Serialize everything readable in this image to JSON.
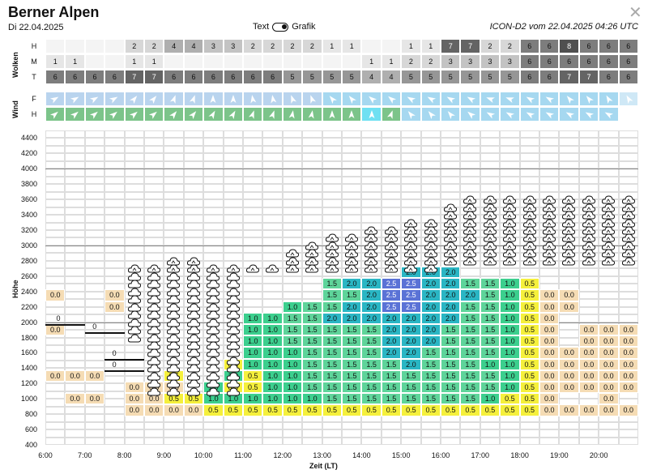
{
  "header": {
    "title": "Berner Alpen",
    "date": "Di 22.04.2025",
    "toggle_left": "Text",
    "toggle_right": "Grafik",
    "model_run": "ICON-D2 vom 22.04.2025 04:26 UTC",
    "close_icon": "close-icon"
  },
  "clouds": {
    "section_label": "Wolken",
    "rows": [
      {
        "label": "H",
        "values": [
          "",
          "",
          "",
          "",
          "2",
          "2",
          "4",
          "4",
          "3",
          "3",
          "2",
          "2",
          "2",
          "2",
          "1",
          "1",
          "",
          "",
          "1",
          "1",
          "7",
          "7",
          "2",
          "2",
          "6",
          "6",
          "8",
          "6",
          "6",
          "6"
        ]
      },
      {
        "label": "M",
        "values": [
          "1",
          "1",
          "",
          "",
          "1",
          "1",
          "",
          "",
          "",
          "",
          "",
          "",
          "",
          "",
          "",
          "",
          "1",
          "1",
          "2",
          "2",
          "3",
          "3",
          "3",
          "3",
          "6",
          "6",
          "6",
          "6",
          "6",
          "6"
        ]
      },
      {
        "label": "T",
        "values": [
          "6",
          "6",
          "6",
          "6",
          "7",
          "7",
          "6",
          "6",
          "6",
          "6",
          "6",
          "6",
          "5",
          "5",
          "5",
          "5",
          "4",
          "4",
          "5",
          "5",
          "5",
          "5",
          "5",
          "5",
          "6",
          "6",
          "7",
          "7",
          "6",
          "6"
        ]
      }
    ]
  },
  "wind": {
    "section_label": "Wind",
    "rows": [
      {
        "label": "F",
        "colors": [
          "#b9d4ee",
          "#b9d4ee",
          "#b9d4ee",
          "#b9d4ee",
          "#b9d4ee",
          "#b9d4ee",
          "#b9d4ee",
          "#b9d4ee",
          "#b9d4ee",
          "#b9d4ee",
          "#b9d4ee",
          "#b9d4ee",
          "#b9d4ee",
          "#b9d4ee",
          "#a6d8f0",
          "#a6d8f0",
          "#a6d8f0",
          "#a6d8f0",
          "#a6d8f0",
          "#a6d8f0",
          "#a6d8f0",
          "#a6d8f0",
          "#a6d8f0",
          "#a6d8f0",
          "#a6d8f0",
          "#a6d8f0",
          "#a6d8f0",
          "#a6d8f0",
          "#a6d8f0",
          "#cfe8f6"
        ],
        "dirs": [
          60,
          60,
          60,
          60,
          40,
          40,
          20,
          20,
          0,
          0,
          350,
          350,
          340,
          340,
          320,
          320,
          310,
          310,
          300,
          300,
          300,
          300,
          290,
          290,
          300,
          300,
          320,
          320,
          330,
          330
        ]
      },
      {
        "label": "H",
        "colors": [
          "#7cc48a",
          "#7cc48a",
          "#7cc48a",
          "#7cc48a",
          "#7cc48a",
          "#7cc48a",
          "#7cc48a",
          "#7cc48a",
          "#7cc48a",
          "#7cc48a",
          "#7cc48a",
          "#7cc48a",
          "#7cc48a",
          "#7cc48a",
          "#7cc48a",
          "#7cc48a",
          "#6fe0f2",
          "#7cc48a",
          "#a6d8f0",
          "#a6d8f0",
          "#a6d8f0",
          "#a6d8f0",
          "#a6d8f0",
          "#a6d8f0",
          "#a6d8f0",
          "#a6d8f0",
          "#a6d8f0",
          "#a6d8f0",
          "#a6d8f0",
          "#ffffff"
        ],
        "dirs": [
          50,
          50,
          50,
          50,
          50,
          50,
          40,
          40,
          30,
          30,
          20,
          20,
          10,
          10,
          0,
          0,
          0,
          20,
          320,
          320,
          320,
          310,
          300,
          300,
          300,
          300,
          300,
          300,
          300,
          300
        ]
      }
    ]
  },
  "chart_data": {
    "type": "heatmap",
    "xlabel": "Zeit (LT)",
    "ylabel": "Höhe",
    "x_ticks": [
      "6:00",
      "7:00",
      "8:00",
      "9:00",
      "10:00",
      "11:00",
      "12:00",
      "13:00",
      "14:00",
      "15:00",
      "16:00",
      "17:00",
      "18:00",
      "19:00",
      "20:00"
    ],
    "y_ticks": [
      "400",
      "600",
      "800",
      "1000",
      "1200",
      "1400",
      "1600",
      "1800",
      "2000",
      "2200",
      "2400",
      "2600",
      "2800",
      "3000",
      "3200",
      "3400",
      "3600",
      "3800",
      "4000",
      "4200",
      "4400"
    ],
    "ylim": [
      400,
      4500
    ],
    "thermal_values_note": "rows listed top (2400 m) to bottom (500 m); one value per half-hour slot",
    "thermal_rows": [
      [
        "",
        "",
        "",
        "",
        "",
        "",
        "",
        "",
        "",
        "",
        "",
        "",
        "",
        "",
        "",
        "",
        "",
        "",
        "2.0",
        "2.0",
        "2.0",
        "",
        "",
        "",
        "",
        "",
        "",
        "",
        "",
        ""
      ],
      [
        "",
        "",
        "",
        "",
        "",
        "",
        "",
        "",
        "",
        "",
        "",
        "",
        "",
        "",
        "1.5",
        "2.0",
        "2.0",
        "2.5",
        "2.5",
        "2.0",
        "2.0",
        "1.5",
        "1.5",
        "1.0",
        "0.5",
        "",
        "",
        "",
        "",
        ""
      ],
      [
        "0.0",
        "",
        "",
        "0.0",
        "",
        "",
        "",
        "",
        "",
        "",
        "",
        "",
        "",
        "",
        "1.5",
        "1.5",
        "2.0",
        "2.5",
        "2.5",
        "2.0",
        "2.0",
        "2.0",
        "1.5",
        "1.0",
        "0.5",
        "0.0",
        "0.0",
        "",
        "",
        ""
      ],
      [
        "",
        "",
        "",
        "0.0",
        "",
        "",
        "",
        "",
        "",
        "",
        "",
        "",
        "1.0",
        "1.5",
        "1.5",
        "2.0",
        "2.0",
        "2.5",
        "2.5",
        "2.0",
        "2.0",
        "1.5",
        "1.5",
        "1.0",
        "0.5",
        "0.0",
        "0.0",
        "",
        "",
        ""
      ],
      [
        "",
        "",
        "",
        "",
        "",
        "",
        "",
        "",
        "",
        "",
        "1.0",
        "1.0",
        "1.5",
        "1.5",
        "2.0",
        "2.0",
        "2.0",
        "2.0",
        "2.0",
        "2.0",
        "2.0",
        "1.5",
        "1.5",
        "1.0",
        "0.5",
        "0.0",
        "",
        "",
        "",
        ""
      ],
      [
        "0.0",
        "",
        "",
        "",
        "",
        "",
        "",
        "",
        "",
        "",
        "1.0",
        "1.0",
        "1.5",
        "1.5",
        "1.5",
        "1.5",
        "1.5",
        "2.0",
        "2.0",
        "2.0",
        "1.5",
        "1.5",
        "1.5",
        "1.0",
        "0.5",
        "0.0",
        "",
        "0.0",
        "0.0",
        "0.0"
      ],
      [
        "",
        "",
        "",
        "",
        "",
        "",
        "",
        "",
        "",
        "",
        "1.0",
        "1.0",
        "1.5",
        "1.5",
        "1.5",
        "1.5",
        "1.5",
        "2.0",
        "2.0",
        "2.0",
        "1.5",
        "1.5",
        "1.5",
        "1.0",
        "0.5",
        "0.0",
        "",
        "0.0",
        "0.0",
        "0.0"
      ],
      [
        "",
        "",
        "",
        "",
        "",
        "",
        "",
        "",
        "",
        "",
        "1.0",
        "1.0",
        "1.0",
        "1.5",
        "1.5",
        "1.5",
        "1.5",
        "2.0",
        "2.0",
        "1.5",
        "1.5",
        "1.5",
        "1.5",
        "1.0",
        "0.5",
        "0.0",
        "0.0",
        "0.0",
        "0.0",
        "0.0"
      ],
      [
        "",
        "",
        "",
        "",
        "",
        "",
        "",
        "",
        "",
        "0.5",
        "1.0",
        "1.0",
        "1.0",
        "1.5",
        "1.5",
        "1.5",
        "1.5",
        "1.5",
        "2.0",
        "1.5",
        "1.5",
        "1.5",
        "1.0",
        "1.0",
        "0.5",
        "0.0",
        "0.0",
        "0.0",
        "0.0",
        "0.0"
      ],
      [
        "0.0",
        "0.0",
        "0.0",
        "",
        "",
        "",
        "0.5",
        "",
        "",
        "1.0",
        "0.5",
        "1.0",
        "1.0",
        "1.5",
        "1.5",
        "1.5",
        "1.5",
        "1.5",
        "1.5",
        "1.5",
        "1.5",
        "1.5",
        "1.5",
        "1.0",
        "0.5",
        "0.0",
        "0.0",
        "0.0",
        "0.0",
        "0.0"
      ],
      [
        "",
        "",
        "",
        "",
        "0.0",
        "0.0",
        "0.0",
        "",
        "1.0",
        "0.5",
        "0.5",
        "1.0",
        "1.0",
        "1.5",
        "1.5",
        "1.5",
        "1.5",
        "1.5",
        "1.5",
        "1.5",
        "1.5",
        "1.5",
        "1.5",
        "1.0",
        "0.5",
        "0.0",
        "0.0",
        "0.0",
        "0.0",
        "0.0"
      ],
      [
        "",
        "0.0",
        "0.0",
        "",
        "0.0",
        "0.0",
        "0.5",
        "0.5",
        "1.0",
        "1.0",
        "1.0",
        "1.0",
        "1.0",
        "1.0",
        "1.5",
        "1.5",
        "1.5",
        "1.5",
        "1.5",
        "1.5",
        "1.5",
        "1.5",
        "1.0",
        "0.5",
        "0.5",
        "0.0",
        "",
        "",
        "0.0",
        ""
      ],
      [
        "",
        "",
        "",
        "",
        "0.0",
        "0.0",
        "0.0",
        "0.0",
        "0.5",
        "0.5",
        "0.5",
        "0.5",
        "0.5",
        "0.5",
        "0.5",
        "0.5",
        "0.5",
        "0.5",
        "0.5",
        "0.5",
        "0.5",
        "0.5",
        "0.5",
        "0.5",
        "0.5",
        "0.0",
        "0.0",
        "0.0",
        "0.0",
        "0.0"
      ]
    ],
    "cloud_tops": [
      0,
      0,
      0,
      0,
      1,
      1,
      2,
      2,
      1,
      1,
      1,
      1,
      3,
      4,
      5,
      5,
      6,
      6,
      7,
      7,
      8,
      9,
      9,
      9,
      9,
      9,
      9,
      9,
      9,
      9
    ],
    "zero_labels": [
      "0",
      "0",
      "0",
      "0"
    ],
    "legend_colors": {
      "0.0": "#f5dcb4",
      "0.5": "#f5f03c",
      "1.0": "#3ccf8e",
      "1.5": "#5ed49a",
      "2.0": "#2ab6c4",
      "2.5": "#5a72d6"
    }
  }
}
